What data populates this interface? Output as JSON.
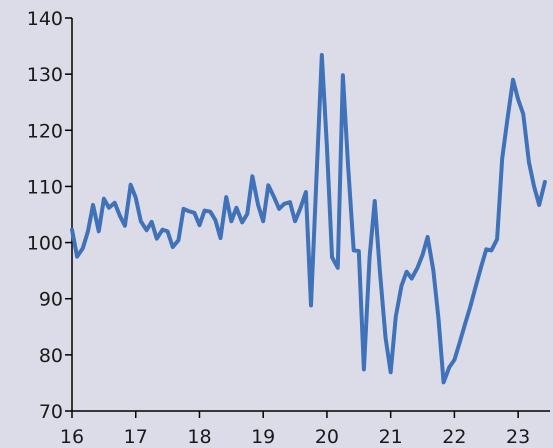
{
  "chart_data": {
    "type": "line",
    "title": "",
    "xlabel": "",
    "ylabel": "",
    "xlim": [
      2016,
      2023.5
    ],
    "ylim": [
      70,
      140
    ],
    "y_ticks": [
      70,
      80,
      90,
      100,
      110,
      120,
      130,
      140
    ],
    "x_ticks": [
      2016,
      2017,
      2018,
      2019,
      2020,
      2021,
      2022,
      2023
    ],
    "x_tick_labels": [
      "16",
      "17",
      "18",
      "19",
      "20",
      "21",
      "22",
      "23"
    ],
    "grid": false,
    "legend": "none",
    "colors": {
      "line": "#3f72b8",
      "background": "#dcdce8",
      "axis": "#000000"
    },
    "series": [
      {
        "x": [
          2016.0,
          2016.08,
          2016.17,
          2016.25,
          2016.33,
          2016.42,
          2016.5,
          2016.58,
          2016.67,
          2016.75,
          2016.83,
          2016.92,
          2017.0,
          2017.08,
          2017.17,
          2017.25,
          2017.33,
          2017.42,
          2017.5,
          2017.58,
          2017.67,
          2017.75,
          2017.83,
          2017.92,
          2018.0,
          2018.08,
          2018.17,
          2018.25,
          2018.33,
          2018.42,
          2018.5,
          2018.58,
          2018.67,
          2018.75,
          2018.83,
          2018.92,
          2019.0,
          2019.08,
          2019.17,
          2019.25,
          2019.33,
          2019.42,
          2019.5,
          2019.58,
          2019.67,
          2019.75,
          2019.83,
          2019.92,
          2020.0,
          2020.08,
          2020.17,
          2020.25,
          2020.33,
          2020.42,
          2020.5,
          2020.58,
          2020.67,
          2020.75,
          2020.83,
          2020.92,
          2021.0,
          2021.08,
          2021.17,
          2021.25,
          2021.33,
          2021.42,
          2021.5,
          2021.58,
          2021.67,
          2021.75,
          2021.83,
          2021.92,
          2022.0,
          2022.08,
          2022.17,
          2022.25,
          2022.33,
          2022.42,
          2022.5,
          2022.58,
          2022.67,
          2022.75,
          2022.83,
          2022.92,
          2023.0,
          2023.08,
          2023.17,
          2023.25,
          2023.33,
          2023.42
        ],
        "values": [
          102.3,
          97.5,
          99.0,
          102.0,
          106.7,
          102.0,
          107.8,
          106.2,
          107.1,
          104.8,
          103.0,
          110.3,
          108.0,
          103.8,
          102.2,
          103.7,
          100.7,
          102.3,
          102.0,
          99.2,
          100.4,
          106.0,
          105.6,
          105.3,
          103.1,
          105.7,
          105.5,
          104.0,
          100.8,
          108.1,
          103.8,
          106.2,
          103.6,
          105.1,
          111.8,
          106.7,
          103.8,
          110.2,
          108.1,
          106.0,
          106.9,
          107.2,
          103.8,
          106.0,
          109.0,
          88.8,
          110.0,
          133.4,
          117.0,
          97.4,
          95.5,
          129.8,
          114.0,
          98.6,
          98.5,
          77.4,
          97.5,
          107.4,
          95.0,
          83.0,
          76.9,
          86.8,
          92.3,
          94.8,
          93.6,
          95.5,
          97.8,
          101.0,
          95.0,
          86.5,
          75.1,
          77.8,
          79.1,
          82.1,
          85.6,
          88.6,
          92.0,
          95.7,
          98.8,
          98.6,
          100.6,
          115.0,
          121.8,
          129.0,
          125.5,
          122.9,
          114.3,
          110.0,
          106.7,
          110.8
        ]
      }
    ]
  }
}
